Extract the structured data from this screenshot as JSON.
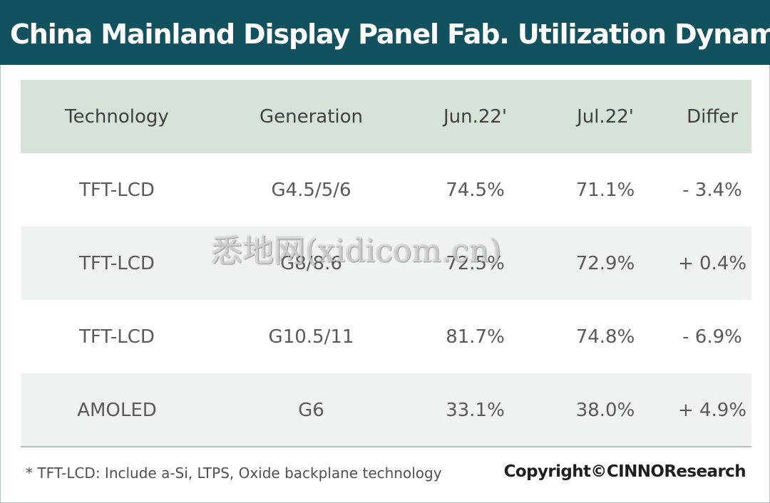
{
  "title": "China Mainland Display Panel Fab. Utilization Dynamic",
  "chart_data": {
    "type": "table",
    "columns": [
      "Technology",
      "Generation",
      "Jun.22'",
      "Jul.22'",
      "Differ"
    ],
    "rows": [
      [
        "TFT-LCD",
        "G4.5/5/6",
        "74.5%",
        "71.1%",
        "- 3.4%"
      ],
      [
        "TFT-LCD",
        "G8/8.6",
        "72.5%",
        "72.9%",
        "+ 0.4%"
      ],
      [
        "TFT-LCD",
        "G10.5/11",
        "81.7%",
        "74.8%",
        "- 6.9%"
      ],
      [
        "AMOLED",
        "G6",
        "33.1%",
        "38.0%",
        "+ 4.9%"
      ]
    ],
    "values": {
      "jun_22": [
        74.5,
        72.5,
        81.7,
        33.1
      ],
      "jul_22": [
        71.1,
        72.9,
        74.8,
        38.0
      ],
      "differ": [
        -3.4,
        0.4,
        -6.9,
        4.9
      ]
    }
  },
  "footnote": "* TFT-LCD: Include a-Si, LTPS, Oxide backplane technology",
  "copyright": "Copyright©CINNOResearch",
  "watermark": "悉地网(xidicom.cn)",
  "colors": {
    "banner": "#12525f",
    "header_row": "#d7e2d9",
    "alt_row": "#eef3ef"
  }
}
